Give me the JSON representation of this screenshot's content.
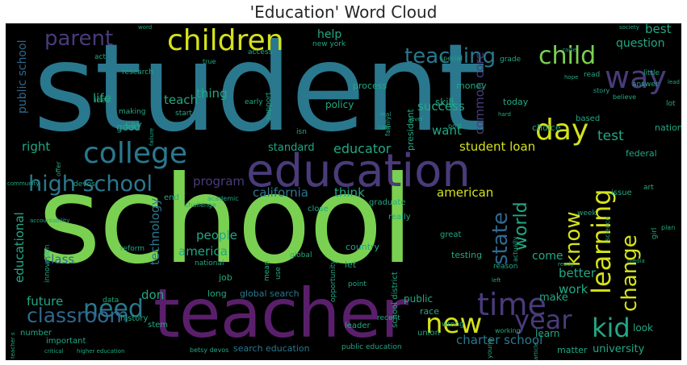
{
  "title": "'Education' Word Cloud",
  "words": {
    "student": "student",
    "school": "school",
    "teacher": "teacher",
    "education": "education",
    "children": "children",
    "college": "college",
    "high_school": "high school",
    "teaching": "teaching",
    "child": "child",
    "parent": "parent",
    "way": "way",
    "day": "day",
    "time": "time",
    "need": "need",
    "classroom": "classroom",
    "new": "new",
    "year": "year",
    "kid": "kid",
    "learning": "learning",
    "know": "know",
    "change": "change",
    "state": "state",
    "world": "world",
    "student_loan": "student loan",
    "success": "success",
    "common_core": "common core",
    "best": "best",
    "question": "question",
    "test": "test",
    "want": "want",
    "educator": "educator",
    "standard": "standard",
    "program": "program",
    "california": "california",
    "think": "think",
    "american": "american",
    "people": "people",
    "america": "america",
    "technology": "technology",
    "class": "class",
    "educational": "educational",
    "public_school": "public school",
    "future": "future",
    "don": "don",
    "charter_school": "charter school",
    "search_education": "search education",
    "global_search": "global search",
    "better": "better",
    "work": "work",
    "make": "make",
    "come": "come",
    "thing": "thing",
    "teach": "teach",
    "life": "life",
    "help": "help",
    "right": "right",
    "good": "good",
    "say": "say",
    "reading": "reading",
    "learn": "learn",
    "look": "look",
    "university": "university",
    "matter": "matter",
    "public": "public",
    "race": "race",
    "job": "job",
    "country": "country",
    "let": "let",
    "great": "great",
    "testing": "testing",
    "president": "president",
    "policy": "policy",
    "process": "process",
    "skill": "skill",
    "money": "money",
    "today": "today",
    "choice": "choice",
    "based": "based",
    "nation": "nation",
    "federal": "federal",
    "issue": "issue",
    "end": "end",
    "graduate": "graduate",
    "really": "really",
    "close": "close",
    "school_district": "school district",
    "opportunity": "opportunity",
    "access": "access",
    "research": "research",
    "grade": "grade",
    "long": "long",
    "history": "history",
    "stem": "stem",
    "data": "data",
    "number": "number",
    "important": "important",
    "leader": "leader",
    "union": "union",
    "reform": "reform",
    "innovation": "innovation",
    "national": "national",
    "mean": "mean",
    "use": "use",
    "idea": "idea",
    "making": "making",
    "start": "start",
    "early": "early",
    "support": "support",
    "new_york": "new york",
    "act": "act",
    "read": "read",
    "story": "story",
    "believe": "believe",
    "lot": "lot",
    "little": "little",
    "answer": "answer",
    "higher_education": "higher education",
    "betsy_devos": "betsy devos",
    "public_education": "public education",
    "recent": "recent",
    "global": "global",
    "devos": "devos",
    "art": "art",
    "plan": "plan",
    "girl": "girl",
    "week": "week",
    "academic": "academic",
    "challenge": "challenge",
    "accountability": "accountability",
    "community": "community",
    "offer": "offer",
    "failure": "failure",
    "care": "care",
    "level": "level",
    "post": "post",
    "special": "special",
    "true": "true",
    "real": "real",
    "hard": "hard",
    "isn": "isn",
    "lead": "lead",
    "raise": "raise",
    "hope": "hope",
    "point": "point",
    "reason": "reason",
    "media": "media",
    "ready": "ready",
    "left": "left",
    "wrong": "wrong",
    "working": "working",
    "actually": "actually",
    "science": "science",
    "family": "family",
    "young": "young",
    "article": "article",
    "critical": "critical",
    "teacher_s": "teacher s",
    "society": "society",
    "word": "word"
  },
  "colors": {
    "title": "#262626",
    "background": "#000000"
  }
}
